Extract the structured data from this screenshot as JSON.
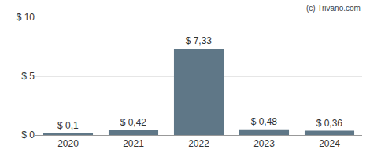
{
  "chart_data": {
    "type": "bar",
    "categories": [
      "2020",
      "2021",
      "2022",
      "2023",
      "2024"
    ],
    "values": [
      0.1,
      0.42,
      7.33,
      0.48,
      0.36
    ],
    "value_labels": [
      "$ 0,1",
      "$ 0,42",
      "$ 7,33",
      "$ 0,48",
      "$ 0,36"
    ],
    "data_labels": true,
    "color": "#5f7787",
    "ylim": [
      0,
      10
    ],
    "yticks": [
      {
        "value": 0,
        "label": "$ 0"
      },
      {
        "value": 5,
        "label": "$ 5"
      },
      {
        "value": 10,
        "label": "$ 10"
      }
    ],
    "grid": true,
    "annotations": [
      "(c) Trivano.com"
    ]
  }
}
